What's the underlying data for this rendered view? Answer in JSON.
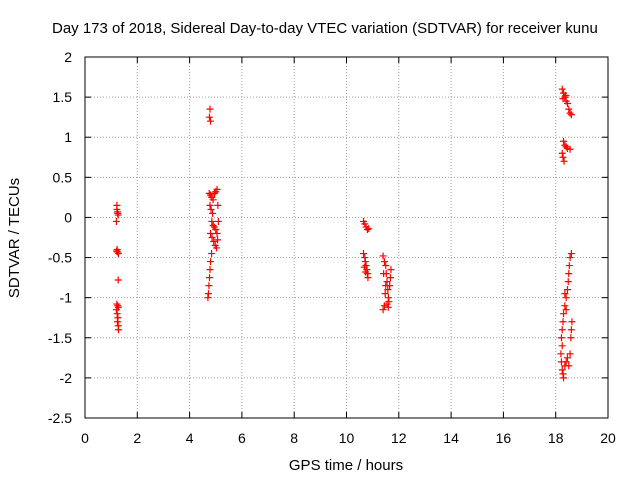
{
  "chart_data": {
    "type": "scatter",
    "title": "Day 173 of 2018, Sidereal Day-to-day VTEC variation (SDTVAR) for receiver kunu",
    "xlabel": "GPS time / hours",
    "ylabel": "SDTVAR / TECUs",
    "xlim": [
      0,
      20
    ],
    "ylim": [
      -2.5,
      2
    ],
    "xticks": [
      "0",
      "2",
      "4",
      "6",
      "8",
      "10",
      "12",
      "14",
      "16",
      "18",
      "20"
    ],
    "yticks": [
      "2",
      "1.5",
      "1",
      "0.5",
      "0",
      "-0.5",
      "-1",
      "-1.5",
      "-2",
      "-2.5"
    ],
    "grid": true,
    "marker": "+",
    "color": "#ff0000",
    "series": [
      {
        "name": "SDTVAR",
        "points": [
          [
            1.22,
            0.15
          ],
          [
            1.22,
            0.1
          ],
          [
            1.24,
            0.07
          ],
          [
            1.25,
            0.05
          ],
          [
            1.27,
            0.03
          ],
          [
            1.2,
            -0.05
          ],
          [
            1.23,
            -0.4
          ],
          [
            1.25,
            -0.43
          ],
          [
            1.28,
            -0.45
          ],
          [
            1.21,
            -0.42
          ],
          [
            1.27,
            -0.78
          ],
          [
            1.22,
            -1.08
          ],
          [
            1.25,
            -1.1
          ],
          [
            1.28,
            -1.12
          ],
          [
            1.2,
            -1.15
          ],
          [
            1.23,
            -1.2
          ],
          [
            1.26,
            -1.25
          ],
          [
            1.24,
            -1.3
          ],
          [
            1.27,
            -1.35
          ],
          [
            1.28,
            -1.4
          ],
          [
            4.78,
            1.35
          ],
          [
            4.76,
            1.25
          ],
          [
            4.8,
            1.2
          ],
          [
            4.75,
            0.3
          ],
          [
            4.8,
            0.28
          ],
          [
            4.85,
            0.25
          ],
          [
            4.9,
            0.22
          ],
          [
            4.95,
            0.3
          ],
          [
            5.0,
            0.32
          ],
          [
            5.05,
            0.35
          ],
          [
            4.78,
            0.15
          ],
          [
            4.82,
            0.1
          ],
          [
            4.88,
            0.05
          ],
          [
            4.85,
            -0.05
          ],
          [
            4.9,
            -0.1
          ],
          [
            4.95,
            -0.12
          ],
          [
            5.0,
            -0.15
          ],
          [
            5.05,
            -0.2
          ],
          [
            4.8,
            -0.2
          ],
          [
            4.86,
            -0.25
          ],
          [
            4.92,
            -0.3
          ],
          [
            4.98,
            -0.35
          ],
          [
            5.03,
            -0.38
          ],
          [
            4.84,
            -0.45
          ],
          [
            4.8,
            -0.55
          ],
          [
            4.78,
            -0.65
          ],
          [
            4.76,
            -0.75
          ],
          [
            4.74,
            -0.85
          ],
          [
            4.72,
            -0.95
          ],
          [
            4.7,
            -1.0
          ],
          [
            5.08,
            0.15
          ],
          [
            5.1,
            -0.05
          ],
          [
            5.07,
            -0.28
          ],
          [
            10.65,
            -0.05
          ],
          [
            10.7,
            -0.08
          ],
          [
            10.75,
            -0.12
          ],
          [
            10.8,
            -0.15
          ],
          [
            10.85,
            -0.14
          ],
          [
            10.65,
            -0.45
          ],
          [
            10.7,
            -0.5
          ],
          [
            10.72,
            -0.55
          ],
          [
            10.75,
            -0.6
          ],
          [
            10.78,
            -0.65
          ],
          [
            10.8,
            -0.7
          ],
          [
            10.82,
            -0.75
          ],
          [
            10.68,
            -0.62
          ],
          [
            10.73,
            -0.68
          ],
          [
            11.4,
            -0.48
          ],
          [
            11.45,
            -0.55
          ],
          [
            11.5,
            -0.6
          ],
          [
            11.52,
            -0.7
          ],
          [
            11.55,
            -0.8
          ],
          [
            11.58,
            -0.9
          ],
          [
            11.6,
            -1.0
          ],
          [
            11.62,
            -1.05
          ],
          [
            11.45,
            -1.1
          ],
          [
            11.4,
            -1.15
          ],
          [
            11.48,
            -0.95
          ],
          [
            11.55,
            -1.08
          ],
          [
            11.65,
            -0.85
          ],
          [
            11.68,
            -0.75
          ],
          [
            11.7,
            -0.65
          ],
          [
            11.42,
            -0.7
          ],
          [
            11.5,
            -0.85
          ],
          [
            11.6,
            -1.12
          ],
          [
            18.25,
            1.6
          ],
          [
            18.3,
            1.55
          ],
          [
            18.35,
            1.5
          ],
          [
            18.4,
            1.45
          ],
          [
            18.45,
            1.42
          ],
          [
            18.5,
            1.35
          ],
          [
            18.55,
            1.3
          ],
          [
            18.6,
            1.28
          ],
          [
            18.28,
            1.48
          ],
          [
            18.38,
            1.52
          ],
          [
            18.3,
            0.95
          ],
          [
            18.35,
            0.9
          ],
          [
            18.4,
            0.88
          ],
          [
            18.45,
            0.86
          ],
          [
            18.55,
            0.85
          ],
          [
            18.25,
            0.8
          ],
          [
            18.28,
            0.75
          ],
          [
            18.32,
            0.7
          ],
          [
            18.6,
            -0.45
          ],
          [
            18.55,
            -0.5
          ],
          [
            18.52,
            -0.6
          ],
          [
            18.5,
            -0.7
          ],
          [
            18.48,
            -0.8
          ],
          [
            18.45,
            -0.9
          ],
          [
            18.4,
            -1.0
          ],
          [
            18.35,
            -1.1
          ],
          [
            18.3,
            -1.2
          ],
          [
            18.28,
            -1.3
          ],
          [
            18.25,
            -1.4
          ],
          [
            18.22,
            -1.5
          ],
          [
            18.25,
            -1.6
          ],
          [
            18.2,
            -1.7
          ],
          [
            18.22,
            -1.8
          ],
          [
            18.25,
            -1.9
          ],
          [
            18.28,
            -1.95
          ],
          [
            18.3,
            -2.0
          ],
          [
            18.35,
            -1.85
          ],
          [
            18.4,
            -1.8
          ],
          [
            18.45,
            -1.75
          ],
          [
            18.5,
            -1.85
          ],
          [
            18.55,
            -1.7
          ],
          [
            18.58,
            -1.5
          ],
          [
            18.6,
            -1.4
          ],
          [
            18.62,
            -1.3
          ],
          [
            18.35,
            -0.95
          ],
          [
            18.4,
            -1.15
          ]
        ]
      }
    ]
  }
}
